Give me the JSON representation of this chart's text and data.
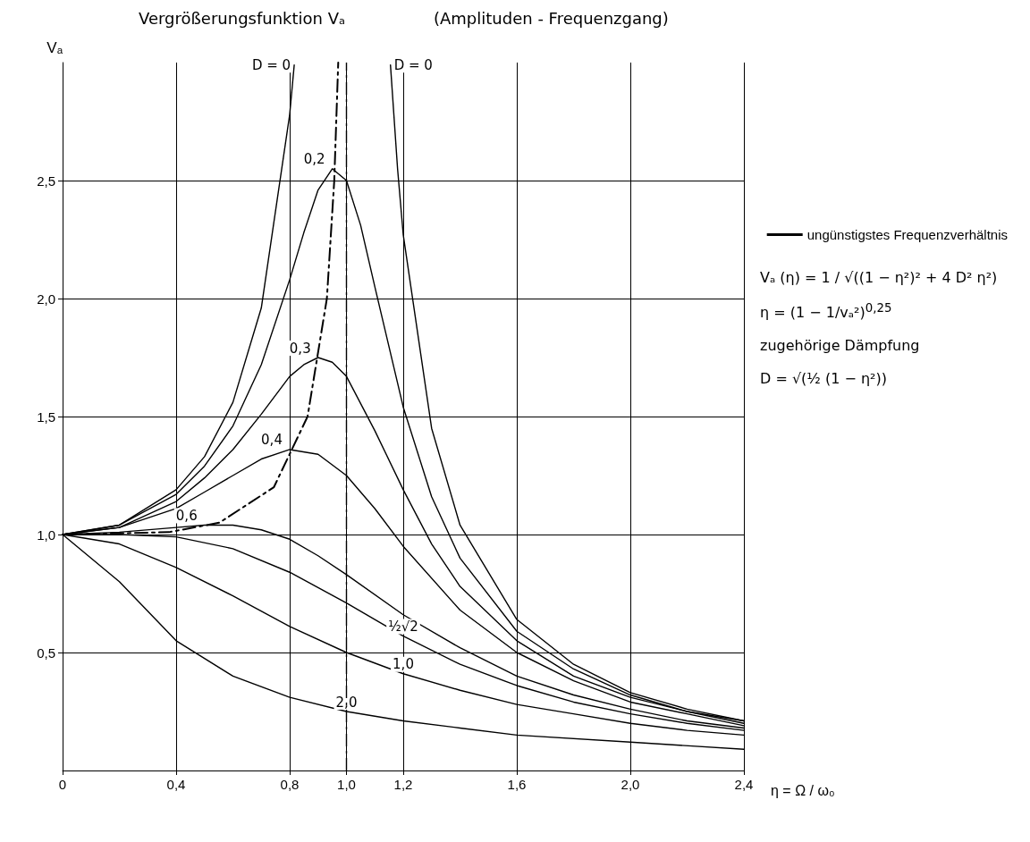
{
  "chart_data": {
    "type": "line",
    "title": "Vergrößerungsfunktion Vₐ",
    "subtitle": "(Amplituden - Frequenzgang)",
    "xlabel": "η = Ω / ω₀",
    "ylabel": "Vₐ",
    "xlim": [
      0,
      2.4
    ],
    "xticks": [
      {
        "value": 0,
        "label": "0"
      },
      {
        "value": 0.4,
        "label": "0,4"
      },
      {
        "value": 0.8,
        "label": "0,8"
      },
      {
        "value": 1.0,
        "label": "1,0"
      },
      {
        "value": 1.2,
        "label": "1,2"
      },
      {
        "value": 1.6,
        "label": "1,6"
      },
      {
        "value": 2.0,
        "label": "2,0"
      },
      {
        "value": 2.4,
        "label": "2,4"
      }
    ],
    "ylim": [
      0,
      3
    ],
    "yticks": [
      {
        "value": 0.5,
        "label": "0,5"
      },
      {
        "value": 1.0,
        "label": "1,0"
      },
      {
        "value": 1.5,
        "label": "1,5"
      },
      {
        "value": 2.0,
        "label": "2,0"
      },
      {
        "value": 2.5,
        "label": "2,5"
      }
    ],
    "grid": true,
    "marker": "none",
    "line_style": "solid",
    "legend": "right",
    "series": [
      {
        "name": "D = 0",
        "color": "#000000",
        "x": [
          0,
          0.2,
          0.4,
          0.5,
          0.6,
          0.7,
          0.8,
          0.816
        ],
        "values": [
          1,
          1.04,
          1.19,
          1.33,
          1.56,
          1.96,
          2.78,
          2.99
        ]
      },
      {
        "name": "D = 0",
        "color": "#000000",
        "x": [
          1.155,
          1.18,
          1.2,
          1.3,
          1.4,
          1.6,
          1.8,
          2.0,
          2.2,
          2.4
        ],
        "values": [
          2.99,
          2.55,
          2.27,
          1.45,
          1.04,
          0.64,
          0.45,
          0.33,
          0.26,
          0.21
        ]
      },
      {
        "name": "0,2",
        "color": "#000000",
        "x": [
          0,
          0.2,
          0.4,
          0.5,
          0.6,
          0.7,
          0.8,
          0.85,
          0.9,
          0.95,
          1.0,
          1.05,
          1.1,
          1.2,
          1.3,
          1.4,
          1.6,
          1.8,
          2.0,
          2.2,
          2.4
        ],
        "values": [
          1,
          1.04,
          1.17,
          1.29,
          1.46,
          1.72,
          2.08,
          2.28,
          2.46,
          2.55,
          2.5,
          2.31,
          2.05,
          1.54,
          1.16,
          0.9,
          0.59,
          0.43,
          0.32,
          0.25,
          0.21
        ]
      },
      {
        "name": "0,3",
        "color": "#000000",
        "x": [
          0,
          0.2,
          0.4,
          0.5,
          0.6,
          0.7,
          0.8,
          0.85,
          0.9,
          0.95,
          1.0,
          1.1,
          1.2,
          1.3,
          1.4,
          1.6,
          1.8,
          2.0,
          2.2,
          2.4
        ],
        "values": [
          1,
          1.03,
          1.14,
          1.24,
          1.36,
          1.51,
          1.67,
          1.72,
          1.75,
          1.73,
          1.67,
          1.44,
          1.19,
          0.96,
          0.78,
          0.55,
          0.4,
          0.31,
          0.25,
          0.2
        ]
      },
      {
        "name": "0,4",
        "color": "#000000",
        "x": [
          0,
          0.2,
          0.4,
          0.5,
          0.6,
          0.7,
          0.8,
          0.9,
          1.0,
          1.1,
          1.2,
          1.4,
          1.6,
          1.8,
          2.0,
          2.2,
          2.4
        ],
        "values": [
          1,
          1.03,
          1.11,
          1.18,
          1.25,
          1.32,
          1.36,
          1.34,
          1.25,
          1.11,
          0.95,
          0.68,
          0.5,
          0.38,
          0.29,
          0.24,
          0.19
        ]
      },
      {
        "name": "0,6",
        "color": "#000000",
        "x": [
          0,
          0.2,
          0.4,
          0.5,
          0.6,
          0.7,
          0.8,
          0.9,
          1.0,
          1.2,
          1.4,
          1.6,
          1.8,
          2.0,
          2.2,
          2.4
        ],
        "values": [
          1,
          1.01,
          1.03,
          1.04,
          1.04,
          1.02,
          0.98,
          0.91,
          0.83,
          0.66,
          0.52,
          0.4,
          0.32,
          0.26,
          0.21,
          0.18
        ]
      },
      {
        "name": "½√2",
        "color": "#000000",
        "x": [
          0,
          0.2,
          0.4,
          0.6,
          0.8,
          1.0,
          1.2,
          1.4,
          1.6,
          1.8,
          2.0,
          2.2,
          2.4
        ],
        "values": [
          1,
          1.0,
          0.99,
          0.94,
          0.84,
          0.71,
          0.57,
          0.45,
          0.36,
          0.29,
          0.24,
          0.2,
          0.17
        ]
      },
      {
        "name": "1,0",
        "color": "#000000",
        "x": [
          0,
          0.2,
          0.4,
          0.6,
          0.8,
          1.0,
          1.2,
          1.4,
          1.6,
          1.8,
          2.0,
          2.2,
          2.4
        ],
        "values": [
          1,
          0.96,
          0.86,
          0.74,
          0.61,
          0.5,
          0.41,
          0.34,
          0.28,
          0.24,
          0.2,
          0.17,
          0.15
        ]
      },
      {
        "name": "2,0",
        "color": "#000000",
        "x": [
          0,
          0.2,
          0.4,
          0.6,
          0.8,
          1.0,
          1.2,
          1.4,
          1.6,
          2.0,
          2.4
        ],
        "values": [
          1,
          0.8,
          0.55,
          0.4,
          0.31,
          0.25,
          0.21,
          0.18,
          0.15,
          0.12,
          0.09
        ]
      },
      {
        "name": "ungünstigstes Frequenzverhältnis",
        "color": "#000000",
        "line_style": "dashed",
        "x": [
          0,
          0.375,
          0.552,
          0.744,
          0.863,
          0.931,
          0.957,
          0.971
        ],
        "values": [
          1,
          1.01,
          1.05,
          1.2,
          1.5,
          2.0,
          2.5,
          3.0
        ]
      }
    ],
    "ref_lines": [
      {
        "axis": "x",
        "value": 1.0,
        "color": "#000000",
        "line_style": "dashed"
      }
    ],
    "annotations": [
      "Vₐ (η) = 1 / √((1 − η²)² + 4 D² η²)",
      "η = (1 − 1/vₐ²)$^{0,25}$",
      "zugehörige Dämpfung",
      "D = √(½ (1 − η²))"
    ]
  }
}
